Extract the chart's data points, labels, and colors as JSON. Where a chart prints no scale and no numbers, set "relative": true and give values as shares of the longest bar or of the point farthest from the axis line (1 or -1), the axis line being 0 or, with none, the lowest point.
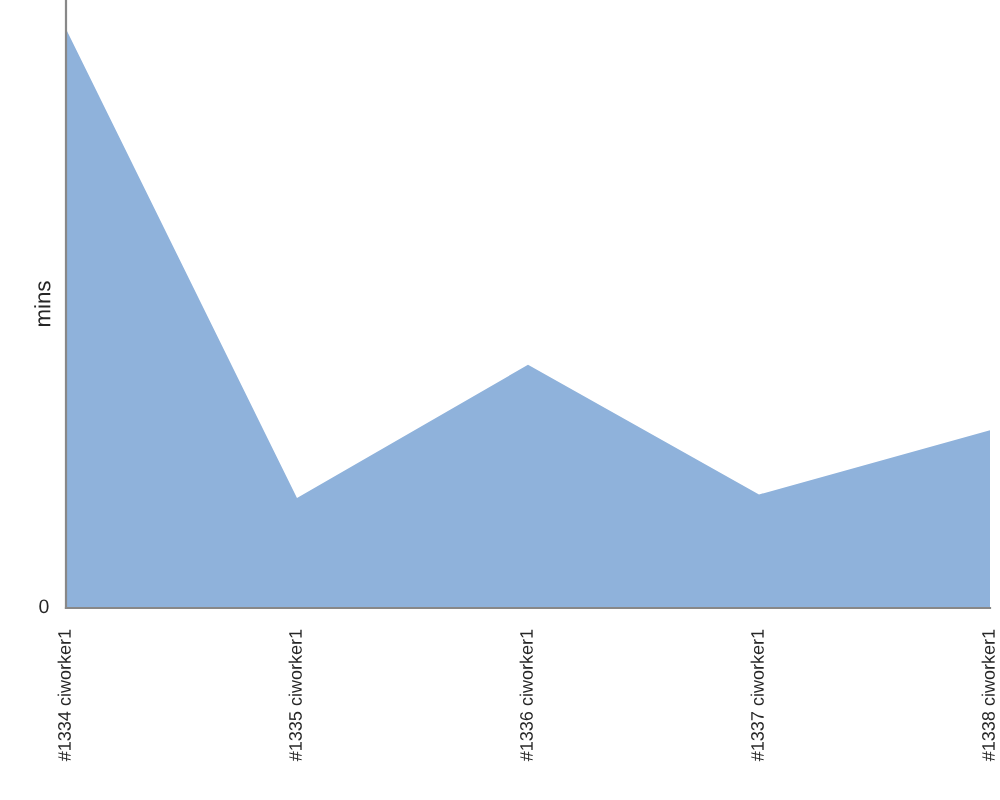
{
  "chart_data": {
    "type": "area",
    "ylabel": "mins",
    "relative": true,
    "categories": [
      "#1334 ciworker1",
      "#1335 ciworker1",
      "#1336 ciworker1",
      "#1337 ciworker1",
      "#1338 ciworker1"
    ],
    "series": [
      {
        "color": "#8fb2db",
        "values": [
          1,
          0.19,
          0.42,
          0.196,
          0.307
        ]
      }
    ],
    "annotations": [
      "0"
    ],
    "grid": false,
    "legend": false
  }
}
